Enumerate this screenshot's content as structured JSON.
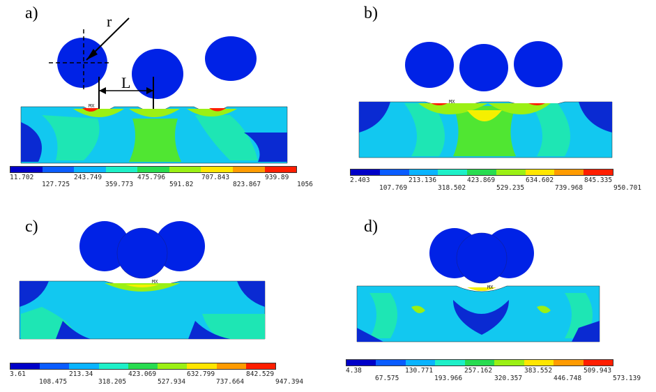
{
  "panels": [
    {
      "label": "a)",
      "mx": "MX",
      "ticks_top": [
        "11.702",
        "243.749",
        "475.796",
        "707.843",
        "939.89"
      ],
      "ticks_bottom": [
        "127.725",
        "359.773",
        "591.82",
        "823.867",
        "1056"
      ]
    },
    {
      "label": "b)",
      "mx": "MX",
      "ticks_top": [
        "2.403",
        "213.136",
        "423.869",
        "634.602",
        "845.335"
      ],
      "ticks_bottom": [
        "107.769",
        "318.502",
        "529.235",
        "739.968",
        "950.701"
      ]
    },
    {
      "label": "c)",
      "mx": "MX",
      "ticks_top": [
        "3.61",
        "213.34",
        "423.069",
        "632.799",
        "842.529"
      ],
      "ticks_bottom": [
        "108.475",
        "318.205",
        "527.934",
        "737.664",
        "947.394"
      ]
    },
    {
      "label": "d)",
      "mx": "MX",
      "ticks_top": [
        "4.38",
        "130.771",
        "257.162",
        "383.552",
        "509.943"
      ],
      "ticks_bottom": [
        "67.575",
        "193.966",
        "320.357",
        "446.748",
        "573.139"
      ]
    }
  ],
  "annotations": {
    "radius": "r",
    "spacing": "L"
  },
  "legend_colors": [
    "#0000c8",
    "#0a5cff",
    "#0ab4ff",
    "#1ef0c8",
    "#28dc50",
    "#9bf014",
    "#ffe600",
    "#ff9b00",
    "#ff1e00"
  ],
  "field_colors": {
    "ball": "#0022e6",
    "base": "#12c8f0",
    "mid": "#1ee6b4",
    "green": "#50e632",
    "yellow": "#f5f000",
    "red": "#ff1e00",
    "dark": "#0a2ad2"
  }
}
